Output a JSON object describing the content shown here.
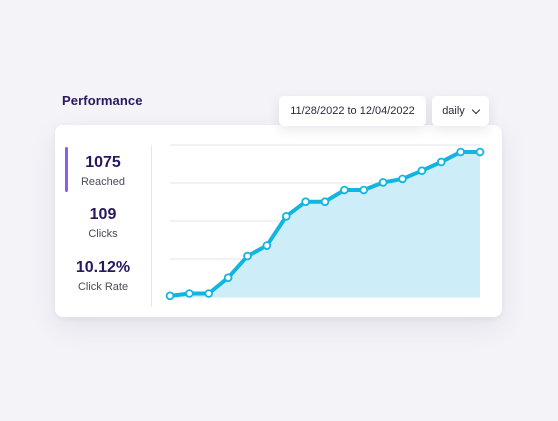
{
  "header": {
    "title": "Performance"
  },
  "filters": {
    "date_range": "11/28/2022 to 12/04/2022",
    "interval": "daily",
    "interval_icon": "chevron-down-icon"
  },
  "stats": [
    {
      "value": "1075",
      "label": "Reached",
      "active": true
    },
    {
      "value": "109",
      "label": "Clicks",
      "active": false
    },
    {
      "value": "10.12%",
      "label": "Click Rate",
      "active": false
    }
  ],
  "colors": {
    "accent": "#8b5cf6",
    "line": "#12b4e0",
    "area": "#cdeef8",
    "title": "#2a1760"
  },
  "chart_data": {
    "type": "line",
    "series": [
      {
        "values": [
          2,
          6,
          6,
          33,
          70,
          88,
          138,
          163,
          163,
          183,
          183,
          196,
          202,
          216,
          231,
          248,
          248
        ]
      }
    ],
    "ylim": [
      0,
      260
    ],
    "grid": true
  }
}
